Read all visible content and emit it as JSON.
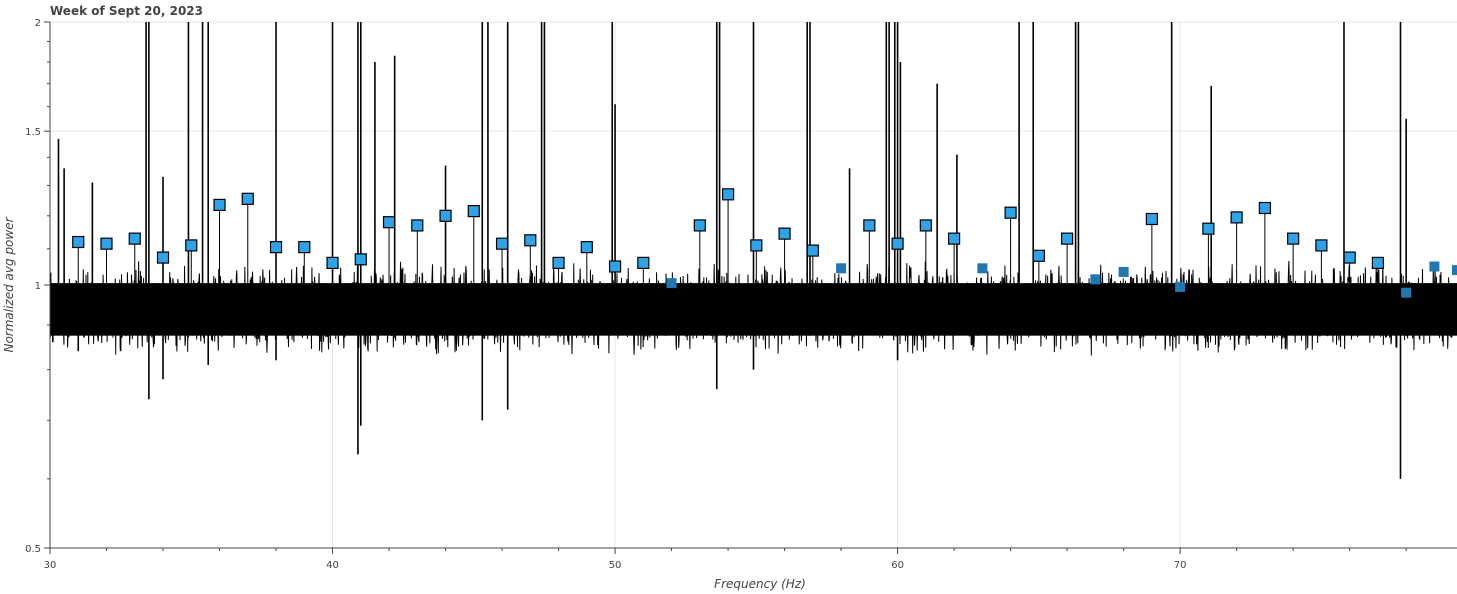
{
  "chart_data": {
    "type": "line",
    "title": "Week of Sept 20, 2023",
    "xlabel": "Frequency (Hz)",
    "ylabel": "Normalized avg power",
    "yscale": "log",
    "xlim": [
      30,
      79.8
    ],
    "ylim": [
      0.5,
      2.0
    ],
    "x_ticks": [
      30,
      40,
      50,
      60,
      70
    ],
    "y_ticks": [
      0.5,
      1,
      1.5,
      2
    ],
    "x_tick_labels": [
      "30",
      "40",
      "50",
      "60",
      "70"
    ],
    "y_tick_labels": [
      "0.5",
      "1",
      "1.5",
      "2"
    ],
    "grid": true,
    "colors": {
      "trace": "#000000",
      "marker_highlight": "#2fa3ea",
      "marker_plain": "#1f77b4",
      "marker_edge": "#000000",
      "grid": "#e6e6e6",
      "axis": "#444444"
    },
    "series": [
      {
        "style": "noisy-line",
        "noise_band": {
          "center": 0.935,
          "upper": 1.05,
          "lower": 0.84
        },
        "spikes": [
          [
            30.3,
            1.47
          ],
          [
            30.5,
            1.36
          ],
          [
            31.5,
            1.31
          ],
          [
            33.4,
            2.0
          ],
          [
            33.5,
            2.0
          ],
          [
            34.0,
            1.33
          ],
          [
            34.9,
            2.0
          ],
          [
            35.4,
            2.0
          ],
          [
            35.6,
            2.0
          ],
          [
            38.0,
            2.0
          ],
          [
            40.0,
            2.0
          ],
          [
            40.9,
            2.0
          ],
          [
            41.0,
            2.0
          ],
          [
            41.5,
            1.8
          ],
          [
            42.2,
            1.83
          ],
          [
            44.0,
            1.37
          ],
          [
            45.3,
            2.0
          ],
          [
            45.5,
            2.0
          ],
          [
            46.2,
            2.0
          ],
          [
            47.4,
            2.0
          ],
          [
            47.5,
            2.0
          ],
          [
            49.9,
            2.0
          ],
          [
            50.0,
            1.61
          ],
          [
            53.6,
            2.0
          ],
          [
            53.7,
            2.0
          ],
          [
            54.9,
            2.0
          ],
          [
            56.8,
            2.0
          ],
          [
            56.9,
            2.0
          ],
          [
            58.3,
            1.36
          ],
          [
            59.6,
            2.0
          ],
          [
            59.7,
            2.0
          ],
          [
            59.9,
            2.0
          ],
          [
            60.0,
            2.0
          ],
          [
            60.1,
            1.8
          ],
          [
            61.4,
            1.7
          ],
          [
            62.1,
            1.41
          ],
          [
            64.3,
            2.0
          ],
          [
            64.8,
            2.0
          ],
          [
            66.3,
            2.0
          ],
          [
            66.4,
            2.0
          ],
          [
            69.7,
            2.0
          ],
          [
            71.1,
            1.69
          ],
          [
            75.8,
            2.0
          ],
          [
            77.8,
            2.0
          ],
          [
            78.0,
            1.55
          ]
        ],
        "dips": [
          [
            30.1,
            0.86
          ],
          [
            31.0,
            0.84
          ],
          [
            32.5,
            0.84
          ],
          [
            33.5,
            0.74
          ],
          [
            34.0,
            0.78
          ],
          [
            35.6,
            0.81
          ],
          [
            38.0,
            0.82
          ],
          [
            40.9,
            0.64
          ],
          [
            41.0,
            0.69
          ],
          [
            45.3,
            0.7
          ],
          [
            46.2,
            0.72
          ],
          [
            53.6,
            0.76
          ],
          [
            54.9,
            0.8
          ],
          [
            60.0,
            0.82
          ],
          [
            77.8,
            0.6
          ]
        ]
      },
      {
        "style": "markers-highlighted",
        "x": [
          31,
          32,
          33,
          34,
          35,
          36,
          37,
          38,
          39,
          40,
          41,
          42,
          43,
          44,
          45,
          46,
          47,
          48,
          49,
          50,
          51,
          53,
          54,
          55,
          56,
          57,
          59,
          60,
          61,
          62,
          64,
          65,
          66,
          69,
          71,
          72,
          73,
          74,
          75,
          76,
          77
        ],
        "y": [
          1.12,
          1.115,
          1.13,
          1.075,
          1.11,
          1.235,
          1.255,
          1.105,
          1.105,
          1.06,
          1.07,
          1.18,
          1.17,
          1.2,
          1.215,
          1.115,
          1.125,
          1.06,
          1.105,
          1.05,
          1.06,
          1.17,
          1.27,
          1.11,
          1.145,
          1.095,
          1.17,
          1.115,
          1.17,
          1.13,
          1.21,
          1.08,
          1.13,
          1.19,
          1.16,
          1.195,
          1.225,
          1.13,
          1.11,
          1.075,
          1.06
        ]
      },
      {
        "style": "markers-plain",
        "x": [
          52,
          58,
          63,
          67,
          68,
          70,
          78,
          79,
          79.8
        ],
        "y": [
          1.005,
          1.045,
          1.045,
          1.015,
          1.035,
          0.995,
          0.98,
          1.05,
          1.04
        ]
      }
    ]
  }
}
